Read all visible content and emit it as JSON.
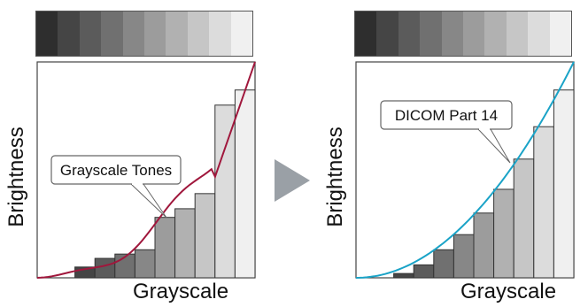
{
  "left": {
    "ylabel": "Brightness",
    "xlabel": "Grayscale",
    "callout": "Grayscale Tones",
    "bar_levels": [
      0.0,
      0.05,
      0.09,
      0.11,
      0.13,
      0.28,
      0.32,
      0.39,
      0.8,
      0.87
    ],
    "curve_color": "#a0173c"
  },
  "right": {
    "ylabel": "Brightness",
    "xlabel": "Grayscale",
    "callout": "DICOM Part 14",
    "bar_levels": [
      0.0,
      0.02,
      0.06,
      0.13,
      0.2,
      0.3,
      0.41,
      0.55,
      0.7,
      0.87
    ],
    "curve_color": "#1aa3c7"
  },
  "ramp_colors": [
    "#2e2e2e",
    "#454545",
    "#5b5b5b",
    "#707070",
    "#878787",
    "#9c9c9c",
    "#b1b1b1",
    "#c6c6c6",
    "#dcdcdc",
    "#f0f0f0"
  ],
  "arrow_color": "#9aa0a6"
}
